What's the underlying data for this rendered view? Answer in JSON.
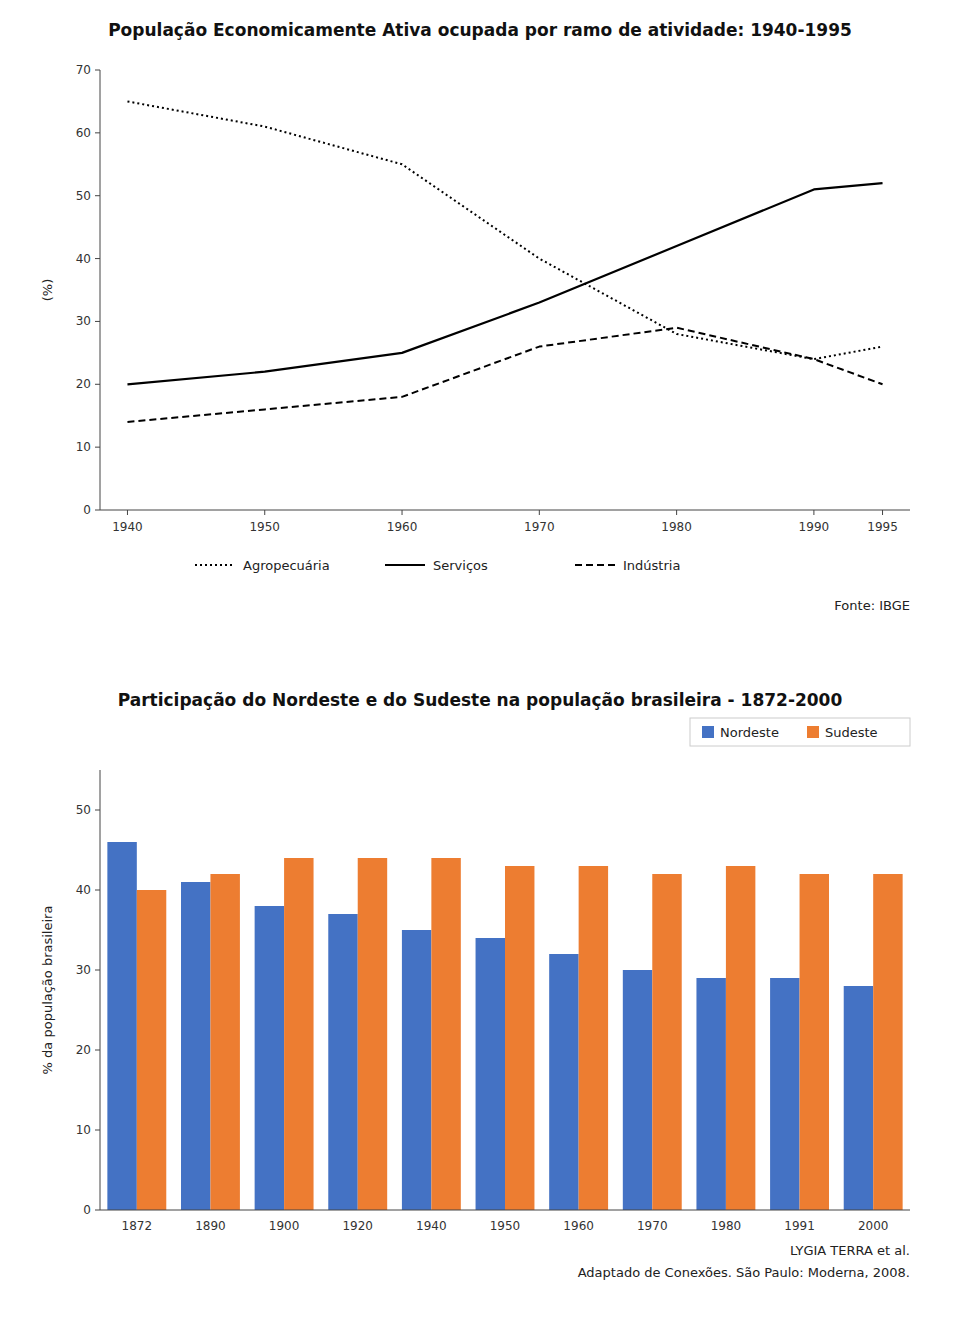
{
  "chart_data": [
    {
      "type": "line",
      "title": "População Economicamente Ativa ocupada por ramo de atividade: 1940-1995",
      "y_label": "(%)",
      "x": [
        1940,
        1950,
        1960,
        1970,
        1980,
        1990,
        1995
      ],
      "xlim": [
        1938,
        1997
      ],
      "xticks": [
        1940,
        1950,
        1960,
        1970,
        1980,
        1990,
        1995
      ],
      "ylim": [
        0,
        70
      ],
      "yticks": [
        0,
        10,
        20,
        30,
        40,
        50,
        60,
        70
      ],
      "grid": false,
      "legend": "bottom",
      "series": [
        {
          "name": "Agropecuária",
          "color": "#000000",
          "line_style": "dotted",
          "values": [
            65,
            61,
            55,
            40,
            28,
            24,
            26
          ]
        },
        {
          "name": "Serviços",
          "color": "#000000",
          "line_style": "solid",
          "values": [
            20,
            22,
            25,
            33,
            42,
            51,
            52
          ]
        },
        {
          "name": "Indústria",
          "color": "#000000",
          "line_style": "dashed",
          "values": [
            14,
            16,
            18,
            26,
            29,
            24,
            20
          ]
        }
      ],
      "annotations": [
        "Fonte: IBGE"
      ]
    },
    {
      "type": "bar",
      "title": "Participação do Nordeste e do Sudeste na população brasileira - 1872-2000",
      "y_label": "% da população brasileira",
      "categories": [
        "1872",
        "1890",
        "1900",
        "1920",
        "1940",
        "1950",
        "1960",
        "1970",
        "1980",
        "1991",
        "2000"
      ],
      "ylim": [
        0,
        55
      ],
      "yticks": [
        0,
        10,
        20,
        30,
        40,
        50
      ],
      "grid": false,
      "legend": "upper right",
      "series": [
        {
          "name": "Nordeste",
          "color": "#4472C4",
          "values": [
            46,
            41,
            38,
            37,
            35,
            34,
            32,
            30,
            29,
            29,
            28
          ]
        },
        {
          "name": "Sudeste",
          "color": "#ED7D31",
          "values": [
            40,
            42,
            44,
            44,
            44,
            43,
            43,
            42,
            43,
            42,
            42
          ]
        }
      ],
      "annotations": [
        "LYGIA TERRA et al.",
        "Adaptado de Conexões. São Paulo: Moderna, 2008."
      ]
    }
  ]
}
